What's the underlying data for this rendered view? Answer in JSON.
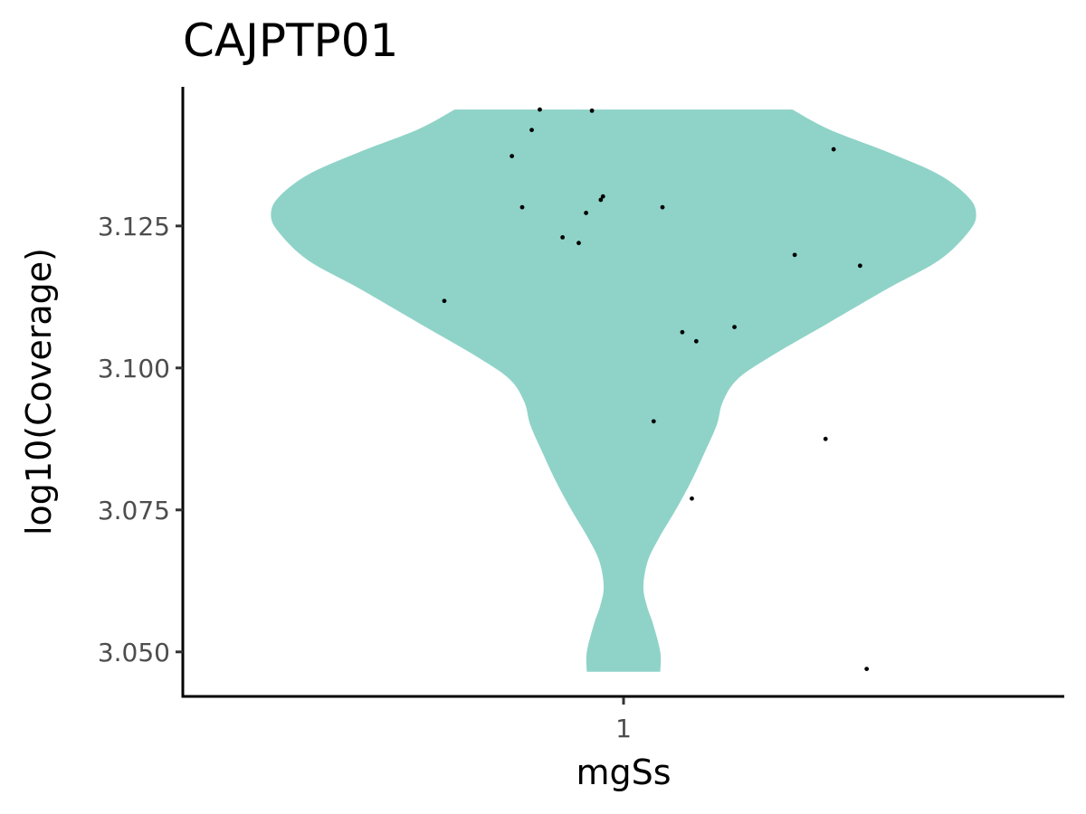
{
  "chart_data": {
    "type": "violin",
    "title": "CAJPTP01",
    "xlabel": "mgSs",
    "ylabel": "log10(Coverage)",
    "categories": [
      "1"
    ],
    "yticks": [
      3.05,
      3.075,
      3.1,
      3.125
    ],
    "ytick_labels": [
      "3.050",
      "3.075",
      "3.100",
      "3.125"
    ],
    "ylim": [
      3.042,
      3.1495
    ],
    "xlim": [
      0.4,
      1.6
    ],
    "grid": false,
    "legend": "none",
    "fill_color": "#8fd3c8",
    "point_color": "#000000",
    "violin": {
      "x": 1,
      "y_min": 3.0465,
      "y_max": 3.1455,
      "density_halfwidth": [
        {
          "y": 3.0465,
          "w": 0.05
        },
        {
          "y": 3.05,
          "w": 0.05
        },
        {
          "y": 3.055,
          "w": 0.04
        },
        {
          "y": 3.058,
          "w": 0.032
        },
        {
          "y": 3.0615,
          "w": 0.027
        },
        {
          "y": 3.066,
          "w": 0.033
        },
        {
          "y": 3.07,
          "w": 0.048
        },
        {
          "y": 3.075,
          "w": 0.071
        },
        {
          "y": 3.08,
          "w": 0.092
        },
        {
          "y": 3.085,
          "w": 0.11
        },
        {
          "y": 3.09,
          "w": 0.127
        },
        {
          "y": 3.094,
          "w": 0.135
        },
        {
          "y": 3.098,
          "w": 0.155
        },
        {
          "y": 3.102,
          "w": 0.2
        },
        {
          "y": 3.108,
          "w": 0.28
        },
        {
          "y": 3.114,
          "w": 0.36
        },
        {
          "y": 3.119,
          "w": 0.43
        },
        {
          "y": 3.124,
          "w": 0.47
        },
        {
          "y": 3.127,
          "w": 0.48
        },
        {
          "y": 3.13,
          "w": 0.47
        },
        {
          "y": 3.134,
          "w": 0.43
        },
        {
          "y": 3.138,
          "w": 0.36
        },
        {
          "y": 3.142,
          "w": 0.28
        },
        {
          "y": 3.1455,
          "w": 0.23
        }
      ]
    },
    "points": [
      {
        "x": 0.886,
        "y": 3.1455
      },
      {
        "x": 0.957,
        "y": 3.1453
      },
      {
        "x": 0.875,
        "y": 3.1419
      },
      {
        "x": 0.848,
        "y": 3.1373
      },
      {
        "x": 1.286,
        "y": 3.1385
      },
      {
        "x": 0.972,
        "y": 3.1302
      },
      {
        "x": 0.969,
        "y": 3.1296
      },
      {
        "x": 0.862,
        "y": 3.1283
      },
      {
        "x": 1.053,
        "y": 3.1283
      },
      {
        "x": 0.949,
        "y": 3.1273
      },
      {
        "x": 0.917,
        "y": 3.123
      },
      {
        "x": 0.939,
        "y": 3.122
      },
      {
        "x": 1.233,
        "y": 3.1199
      },
      {
        "x": 1.322,
        "y": 3.118
      },
      {
        "x": 0.756,
        "y": 3.1118
      },
      {
        "x": 1.151,
        "y": 3.1072
      },
      {
        "x": 1.08,
        "y": 3.1063
      },
      {
        "x": 1.099,
        "y": 3.1047
      },
      {
        "x": 1.041,
        "y": 3.0906
      },
      {
        "x": 1.275,
        "y": 3.0875
      },
      {
        "x": 1.093,
        "y": 3.077
      },
      {
        "x": 1.331,
        "y": 3.047
      }
    ]
  }
}
